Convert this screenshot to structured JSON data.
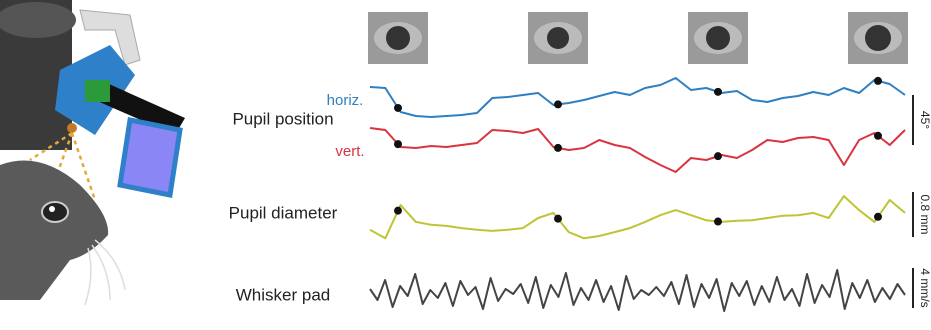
{
  "figure": {
    "type": "line",
    "rows": [
      {
        "label": "Pupil position",
        "scale_bar": {
          "value": 45,
          "label": "45°"
        },
        "series": [
          {
            "name": "horiz.",
            "color": "#2f7fc1",
            "values": [
              27.9,
              27,
              5.4,
              1.8,
              0.9,
              1.8,
              2.7,
              4.5,
              18,
              18.9,
              20.7,
              22.5,
              11.7,
              13.5,
              16.2,
              19.8,
              23.4,
              20.7,
              27,
              29.7,
              36,
              25.2,
              27,
              22.5,
              24.3,
              16.2,
              14.4,
              18,
              19.8,
              23.4,
              20.7,
              27,
              22.5,
              34.2,
              30.6,
              20.7
            ]
          },
          {
            "name": "vert.",
            "color": "#d9343f",
            "values": [
              46.8,
              45,
              29.7,
              28.8,
              30.6,
              29.7,
              31.5,
              33.3,
              45,
              44.1,
              42.3,
              45.9,
              29.7,
              27,
              28.8,
              36,
              31.5,
              28.8,
              20.7,
              13.5,
              7.2,
              19.8,
              18,
              22.5,
              19.8,
              27,
              36,
              34.2,
              37.8,
              38.7,
              36,
              13.5,
              36,
              42.3,
              31.5,
              45
            ]
          }
        ]
      },
      {
        "label": "Pupil diameter",
        "scale_bar": {
          "value": 0.8,
          "label": "0.8 mm"
        },
        "series": [
          {
            "color": "#bfc435",
            "values": [
              0.27,
              0.12,
              0.71,
              0.41,
              0.36,
              0.34,
              0.3,
              0.27,
              0.25,
              0.27,
              0.3,
              0.48,
              0.57,
              0.23,
              0.12,
              0.16,
              0.23,
              0.3,
              0.41,
              0.53,
              0.62,
              0.53,
              0.44,
              0.41,
              0.43,
              0.44,
              0.48,
              0.52,
              0.53,
              0.57,
              0.48,
              0.87,
              0.62,
              0.41,
              0.8,
              0.57
            ]
          }
        ]
      },
      {
        "label": "Whisker pad",
        "scale_bar": {
          "value": 4,
          "label": "4 mm/s"
        },
        "series": [
          {
            "color": "#444444",
            "values": [
              0.3,
              -0.8,
              1.2,
              -1.5,
              0.6,
              -0.4,
              1.8,
              -1.2,
              0.2,
              -0.6,
              0.9,
              -1.4,
              1.1,
              -0.3,
              0.5,
              -1.7,
              1.4,
              -0.9,
              0.3,
              -0.2,
              0.8,
              -1.1,
              1.5,
              -1.6,
              0.7,
              -0.5,
              1.9,
              -1.3,
              0.4,
              -0.8,
              1.2,
              -1.0,
              0.6,
              -1.8,
              1.6,
              -0.7,
              0.2,
              -0.3,
              0.5,
              -0.4,
              1.0,
              -1.2,
              1.7,
              -1.5,
              0.8,
              -0.6,
              1.3,
              -1.9,
              0.9,
              -0.4,
              1.1,
              -1.3,
              0.6,
              -1.0,
              1.5,
              -0.8,
              0.3,
              -1.4,
              1.8,
              -1.1,
              0.7,
              -0.5,
              2.2,
              -1.7,
              0.9,
              -0.6,
              1.2,
              -1.0,
              0.4,
              -0.7,
              0.8,
              -0.3
            ]
          }
        ]
      }
    ]
  }
}
